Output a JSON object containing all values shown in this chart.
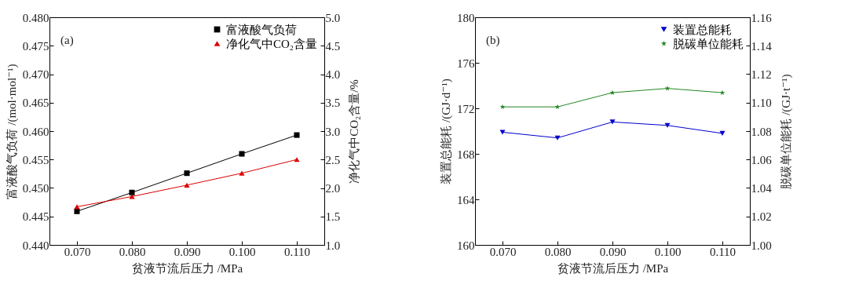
{
  "chart_data": [
    {
      "type": "line",
      "annotations": [
        "(a)"
      ],
      "xlabel": "贫液节流后压力 /MPa",
      "ylabel": "富液酸气负荷 /(mol·mol⁻¹)",
      "y2label": "净化气中CO₂含量/%",
      "x": [
        0.07,
        0.08,
        0.09,
        0.1,
        0.11
      ],
      "xlim": [
        0.065,
        0.115
      ],
      "xticks": [
        {
          "value": 0.07,
          "label": "0.070"
        },
        {
          "value": 0.08,
          "label": "0.080"
        },
        {
          "value": 0.09,
          "label": "0.090"
        },
        {
          "value": 0.1,
          "label": "0.100"
        },
        {
          "value": 0.11,
          "label": "0.110"
        }
      ],
      "ylim": [
        0.44,
        0.48
      ],
      "yticks": [
        {
          "value": 0.44,
          "label": "0.440"
        },
        {
          "value": 0.445,
          "label": "0.445"
        },
        {
          "value": 0.45,
          "label": "0.450"
        },
        {
          "value": 0.455,
          "label": "0.455"
        },
        {
          "value": 0.46,
          "label": "0.460"
        },
        {
          "value": 0.465,
          "label": "0.465"
        },
        {
          "value": 0.47,
          "label": "0.470"
        },
        {
          "value": 0.475,
          "label": "0.475"
        },
        {
          "value": 0.48,
          "label": "0.480"
        }
      ],
      "y2lim": [
        1,
        5
      ],
      "y2ticks": [
        {
          "value": 1,
          "label": "1.0"
        },
        1.5,
        {
          "value": 2,
          "label": "2.0"
        },
        2.5,
        {
          "value": 3,
          "label": "3.0"
        },
        3.5,
        {
          "value": 4,
          "label": "4.0"
        },
        4.5,
        {
          "value": 5,
          "label": "5.0"
        }
      ],
      "legend": "top right",
      "line_style": "solid",
      "series": [
        {
          "name": "富液酸气负荷",
          "color": "#000000",
          "marker": "square",
          "values": [
            0.4459,
            0.4492,
            0.4526,
            0.456,
            0.4593
          ]
        },
        {
          "name": "净化气中CO₂含量",
          "color": "#dd0000",
          "marker": "triangle",
          "axis": "y2",
          "values": [
            1.67,
            1.85,
            2.05,
            2.26,
            2.5
          ]
        }
      ]
    },
    {
      "type": "line",
      "annotations": [
        "(b)"
      ],
      "xlabel": "贫液节流后压力 /MPa",
      "ylabel": "装置总能耗 /(GJ·d⁻¹)",
      "y2label": "脱碳单位能耗 /(GJ·t⁻¹)",
      "x": [
        0.07,
        0.08,
        0.09,
        0.1,
        0.11
      ],
      "xlim": [
        0.065,
        0.115
      ],
      "xticks": [
        {
          "value": 0.07,
          "label": "0.070"
        },
        {
          "value": 0.08,
          "label": "0.080"
        },
        {
          "value": 0.09,
          "label": "0.090"
        },
        {
          "value": 0.1,
          "label": "0.100"
        },
        {
          "value": 0.11,
          "label": "0.110"
        }
      ],
      "ylim": [
        160,
        180
      ],
      "yticks": [
        160,
        164,
        168,
        172,
        176,
        180
      ],
      "y2lim": [
        1,
        1.16
      ],
      "y2ticks": [
        {
          "value": 1,
          "label": "1.00"
        },
        1.02,
        1.04,
        1.06,
        1.08,
        {
          "value": 1.1,
          "label": "1.10"
        },
        1.12,
        1.14,
        1.16
      ],
      "legend": "top right",
      "line_style": "solid",
      "series": [
        {
          "name": "装置总能耗",
          "color": "#0000cc",
          "marker": "triangle-down",
          "values": [
            169.9,
            169.4,
            170.8,
            170.5,
            169.8
          ]
        },
        {
          "name": "脱碳单位能耗",
          "color": "#228822",
          "marker": "star",
          "axis": "y2",
          "values": [
            1.097,
            1.097,
            1.107,
            1.11,
            1.107
          ]
        }
      ]
    }
  ]
}
